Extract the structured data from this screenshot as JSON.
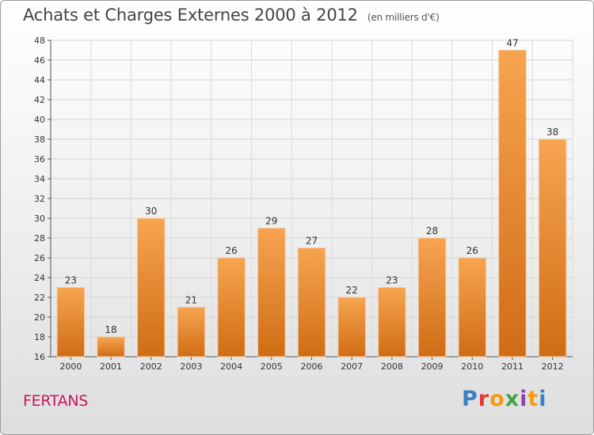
{
  "header": {
    "title": "Achats et Charges Externes 2000 à 2012",
    "unit": "(en milliers d'€)"
  },
  "footer": {
    "commune": "FERTANS",
    "logo": "Proxiti",
    "logo_colors": [
      "#3b82c4",
      "#e53935",
      "#f39c12",
      "#43a047",
      "#8e44ad",
      "#f39c12",
      "#3b82c4"
    ]
  },
  "chart_data": {
    "type": "bar",
    "categories": [
      "2000",
      "2001",
      "2002",
      "2003",
      "2004",
      "2005",
      "2006",
      "2007",
      "2008",
      "2009",
      "2010",
      "2011",
      "2012"
    ],
    "values": [
      23,
      18,
      30,
      21,
      26,
      29,
      27,
      22,
      23,
      28,
      26,
      47,
      38
    ],
    "ylim": [
      16,
      48
    ],
    "yticks": [
      16,
      18,
      20,
      22,
      24,
      26,
      28,
      30,
      32,
      34,
      36,
      38,
      40,
      42,
      44,
      46,
      48
    ],
    "grid": true,
    "bar_color_top": "#f7a450",
    "bar_color_bottom": "#cf6d15"
  }
}
